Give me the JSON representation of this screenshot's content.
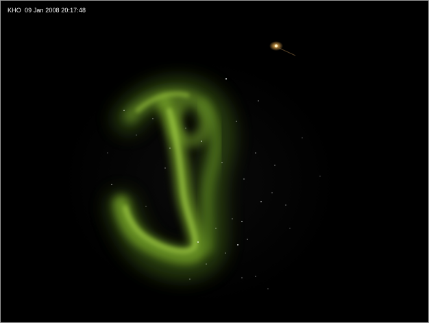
{
  "image": {
    "station": "KHO",
    "timestamp": "09 Jan 2008 20:17:48"
  },
  "colors": {
    "sky": "#000000",
    "aurora": "#8fc332",
    "caption": "#ffffff"
  }
}
